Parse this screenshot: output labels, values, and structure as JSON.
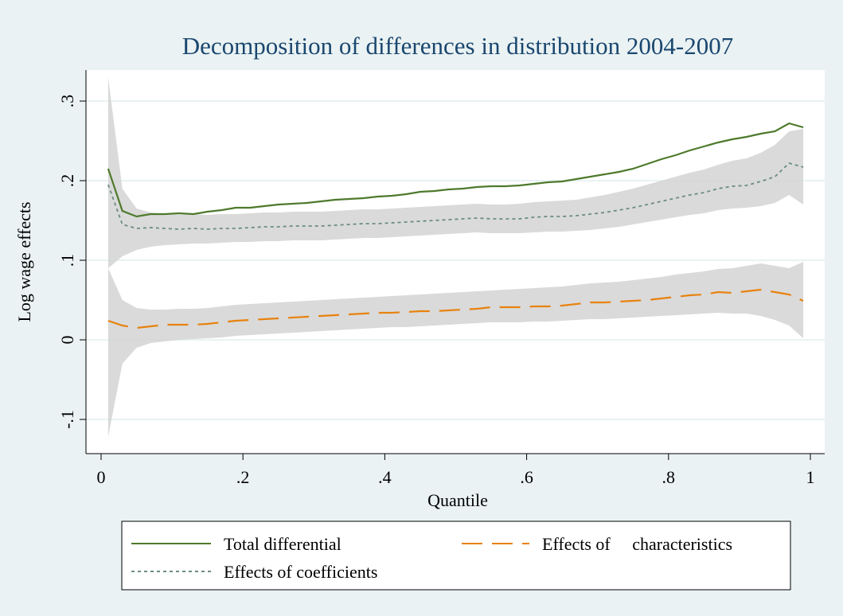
{
  "chart_data": {
    "type": "line",
    "title": "Decomposition of differences in distribution 2004-2007",
    "x_label": "Quantile",
    "y_label": "Log wage effects",
    "x": [
      0.01,
      0.03,
      0.05,
      0.07,
      0.09,
      0.11,
      0.13,
      0.15,
      0.17,
      0.19,
      0.21,
      0.23,
      0.25,
      0.27,
      0.29,
      0.31,
      0.33,
      0.35,
      0.37,
      0.39,
      0.41,
      0.43,
      0.45,
      0.47,
      0.49,
      0.51,
      0.53,
      0.55,
      0.57,
      0.59,
      0.61,
      0.63,
      0.65,
      0.67,
      0.69,
      0.71,
      0.73,
      0.75,
      0.77,
      0.79,
      0.81,
      0.83,
      0.85,
      0.87,
      0.89,
      0.91,
      0.93,
      0.95,
      0.97,
      0.99
    ],
    "series": [
      {
        "name": "Total differential",
        "color": "#4e7a2c",
        "dash": "solid",
        "values": [
          0.215,
          0.162,
          0.155,
          0.158,
          0.158,
          0.159,
          0.158,
          0.161,
          0.163,
          0.166,
          0.166,
          0.168,
          0.17,
          0.171,
          0.172,
          0.174,
          0.176,
          0.177,
          0.178,
          0.18,
          0.181,
          0.183,
          0.186,
          0.187,
          0.189,
          0.19,
          0.192,
          0.193,
          0.193,
          0.194,
          0.196,
          0.198,
          0.199,
          0.202,
          0.205,
          0.208,
          0.211,
          0.215,
          0.221,
          0.227,
          0.232,
          0.238,
          0.243,
          0.248,
          0.252,
          0.255,
          0.259,
          0.262,
          0.272,
          0.267
        ]
      },
      {
        "name": "Effects of     characteristics",
        "color": "#e8820e",
        "dash": "long",
        "values": [
          0.024,
          0.018,
          0.015,
          0.017,
          0.019,
          0.019,
          0.019,
          0.02,
          0.022,
          0.024,
          0.025,
          0.026,
          0.027,
          0.028,
          0.029,
          0.03,
          0.031,
          0.032,
          0.033,
          0.034,
          0.034,
          0.035,
          0.036,
          0.036,
          0.037,
          0.038,
          0.039,
          0.041,
          0.041,
          0.041,
          0.042,
          0.042,
          0.043,
          0.045,
          0.047,
          0.047,
          0.048,
          0.049,
          0.05,
          0.052,
          0.054,
          0.056,
          0.057,
          0.06,
          0.059,
          0.061,
          0.063,
          0.06,
          0.057,
          0.049
        ],
        "upper": [
          0.09,
          0.05,
          0.04,
          0.038,
          0.038,
          0.039,
          0.039,
          0.04,
          0.042,
          0.044,
          0.045,
          0.046,
          0.047,
          0.048,
          0.049,
          0.05,
          0.051,
          0.052,
          0.053,
          0.054,
          0.055,
          0.056,
          0.057,
          0.058,
          0.059,
          0.06,
          0.061,
          0.062,
          0.063,
          0.064,
          0.065,
          0.066,
          0.067,
          0.069,
          0.071,
          0.072,
          0.073,
          0.075,
          0.077,
          0.079,
          0.082,
          0.084,
          0.086,
          0.089,
          0.09,
          0.093,
          0.096,
          0.093,
          0.09,
          0.098
        ],
        "lower": [
          -0.122,
          -0.03,
          -0.01,
          -0.004,
          -0.002,
          0.0,
          0.001,
          0.002,
          0.003,
          0.005,
          0.006,
          0.007,
          0.008,
          0.009,
          0.01,
          0.011,
          0.012,
          0.013,
          0.014,
          0.015,
          0.016,
          0.016,
          0.017,
          0.018,
          0.019,
          0.02,
          0.021,
          0.022,
          0.022,
          0.022,
          0.023,
          0.023,
          0.024,
          0.025,
          0.026,
          0.026,
          0.027,
          0.028,
          0.029,
          0.03,
          0.031,
          0.032,
          0.033,
          0.034,
          0.033,
          0.033,
          0.03,
          0.025,
          0.018,
          0.002
        ]
      },
      {
        "name": "Effects of coefficients",
        "color": "#6a8c82",
        "dash": "short",
        "values": [
          0.195,
          0.145,
          0.14,
          0.141,
          0.14,
          0.139,
          0.14,
          0.139,
          0.14,
          0.14,
          0.141,
          0.142,
          0.142,
          0.143,
          0.143,
          0.143,
          0.144,
          0.145,
          0.146,
          0.146,
          0.147,
          0.148,
          0.149,
          0.15,
          0.151,
          0.152,
          0.153,
          0.152,
          0.152,
          0.152,
          0.154,
          0.155,
          0.155,
          0.156,
          0.158,
          0.16,
          0.163,
          0.166,
          0.17,
          0.174,
          0.178,
          0.182,
          0.185,
          0.19,
          0.193,
          0.194,
          0.199,
          0.205,
          0.222,
          0.217
        ],
        "upper": [
          0.33,
          0.19,
          0.165,
          0.16,
          0.158,
          0.157,
          0.158,
          0.157,
          0.158,
          0.158,
          0.159,
          0.16,
          0.16,
          0.161,
          0.161,
          0.161,
          0.162,
          0.163,
          0.164,
          0.164,
          0.165,
          0.166,
          0.167,
          0.168,
          0.169,
          0.17,
          0.171,
          0.17,
          0.17,
          0.171,
          0.173,
          0.174,
          0.175,
          0.176,
          0.179,
          0.182,
          0.186,
          0.19,
          0.195,
          0.2,
          0.205,
          0.21,
          0.214,
          0.22,
          0.225,
          0.228,
          0.235,
          0.245,
          0.262,
          0.265
        ],
        "lower": [
          0.09,
          0.105,
          0.113,
          0.117,
          0.119,
          0.12,
          0.121,
          0.121,
          0.122,
          0.123,
          0.123,
          0.124,
          0.124,
          0.125,
          0.125,
          0.125,
          0.126,
          0.127,
          0.128,
          0.128,
          0.129,
          0.13,
          0.131,
          0.132,
          0.133,
          0.134,
          0.135,
          0.134,
          0.134,
          0.134,
          0.135,
          0.136,
          0.136,
          0.137,
          0.138,
          0.14,
          0.142,
          0.145,
          0.148,
          0.151,
          0.154,
          0.157,
          0.159,
          0.163,
          0.165,
          0.166,
          0.168,
          0.172,
          0.182,
          0.17
        ]
      }
    ],
    "band_color": "#d4d4d4",
    "xlim": [
      -0.0213,
      1.0202
    ],
    "ylim": [
      -0.143,
      0.339
    ],
    "xticks": [
      0,
      {
        "value": 0.2,
        "label": ".2"
      },
      {
        "value": 0.4,
        "label": ".4"
      },
      {
        "value": 0.6,
        "label": ".6"
      },
      {
        "value": 0.8,
        "label": ".8"
      },
      1
    ],
    "yticks": [
      {
        "value": -0.1,
        "label": "-.1"
      },
      0,
      {
        "value": 0.1,
        "label": ".1"
      },
      {
        "value": 0.2,
        "label": ".2"
      },
      {
        "value": 0.3,
        "label": ".3"
      }
    ],
    "grid": true
  }
}
